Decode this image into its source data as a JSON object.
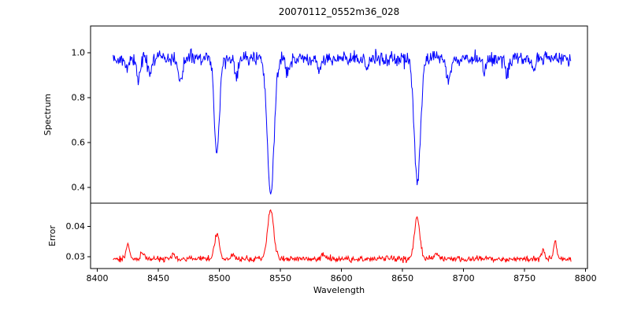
{
  "chart_data": {
    "type": "line",
    "title": "20070112_0552m36_028",
    "xlabel": "Wavelength",
    "xlim": [
      8394.5,
      8801.5
    ],
    "x_data_range": [
      8413,
      8788
    ],
    "sample_step": 0.5,
    "noise_seed": 42,
    "x_ticks": [
      8400,
      8450,
      8500,
      8550,
      8600,
      8650,
      8700,
      8750,
      8800
    ],
    "x_tick_labels": [
      "8400",
      "8450",
      "8500",
      "8550",
      "8600",
      "8650",
      "8700",
      "8750",
      "8800"
    ],
    "grid": false,
    "legend": "none",
    "axis_color": "#000000",
    "panels": [
      {
        "ylabel": "Spectrum",
        "ylim": [
          0.33,
          1.12
        ],
        "yticks": [
          0.4,
          0.6,
          0.8,
          1.0
        ],
        "ytick_labels": [
          "0.4",
          "0.6",
          "0.8",
          "1.0"
        ],
        "series": {
          "name": "spectrum",
          "color": "#0000ff",
          "continuum": 0.975,
          "noise_sigma": 0.016,
          "absorption_lines": [
            {
              "center": 8424,
              "depth": 0.05,
              "width": 1.5
            },
            {
              "center": 8434,
              "depth": 0.09,
              "width": 1.5
            },
            {
              "center": 8443,
              "depth": 0.06,
              "width": 1.4
            },
            {
              "center": 8468,
              "depth": 0.1,
              "width": 1.8
            },
            {
              "center": 8498.0,
              "depth": 0.42,
              "width": 2.1
            },
            {
              "center": 8514,
              "depth": 0.08,
              "width": 1.5
            },
            {
              "center": 8542.1,
              "depth": 0.605,
              "width": 2.8
            },
            {
              "center": 8556,
              "depth": 0.06,
              "width": 1.4
            },
            {
              "center": 8582,
              "depth": 0.06,
              "width": 1.5
            },
            {
              "center": 8621,
              "depth": 0.05,
              "width": 1.4
            },
            {
              "center": 8662.1,
              "depth": 0.56,
              "width": 2.5
            },
            {
              "center": 8688,
              "depth": 0.1,
              "width": 1.8
            },
            {
              "center": 8717,
              "depth": 0.06,
              "width": 1.5
            },
            {
              "center": 8736,
              "depth": 0.07,
              "width": 1.5
            },
            {
              "center": 8757,
              "depth": 0.06,
              "width": 1.5
            }
          ]
        }
      },
      {
        "ylabel": "Error",
        "ylim": [
          0.026,
          0.0478
        ],
        "yticks": [
          0.03,
          0.04
        ],
        "ytick_labels": [
          "0.03",
          "0.04"
        ],
        "series": {
          "name": "error",
          "color": "#ff0000",
          "baseline": 0.0292,
          "noise_sigma": 0.0005,
          "peaks": [
            {
              "center": 8425,
              "height": 0.0045,
              "width": 1.5
            },
            {
              "center": 8437,
              "height": 0.002,
              "width": 1.5
            },
            {
              "center": 8462,
              "height": 0.0015,
              "width": 1.5
            },
            {
              "center": 8498,
              "height": 0.008,
              "width": 2.0
            },
            {
              "center": 8511,
              "height": 0.002,
              "width": 1.4
            },
            {
              "center": 8542,
              "height": 0.0165,
              "width": 2.5
            },
            {
              "center": 8585,
              "height": 0.0015,
              "width": 1.4
            },
            {
              "center": 8662,
              "height": 0.014,
              "width": 2.2
            },
            {
              "center": 8678,
              "height": 0.002,
              "width": 1.5
            },
            {
              "center": 8765,
              "height": 0.003,
              "width": 1.5
            },
            {
              "center": 8775,
              "height": 0.006,
              "width": 1.3
            }
          ]
        }
      }
    ]
  }
}
